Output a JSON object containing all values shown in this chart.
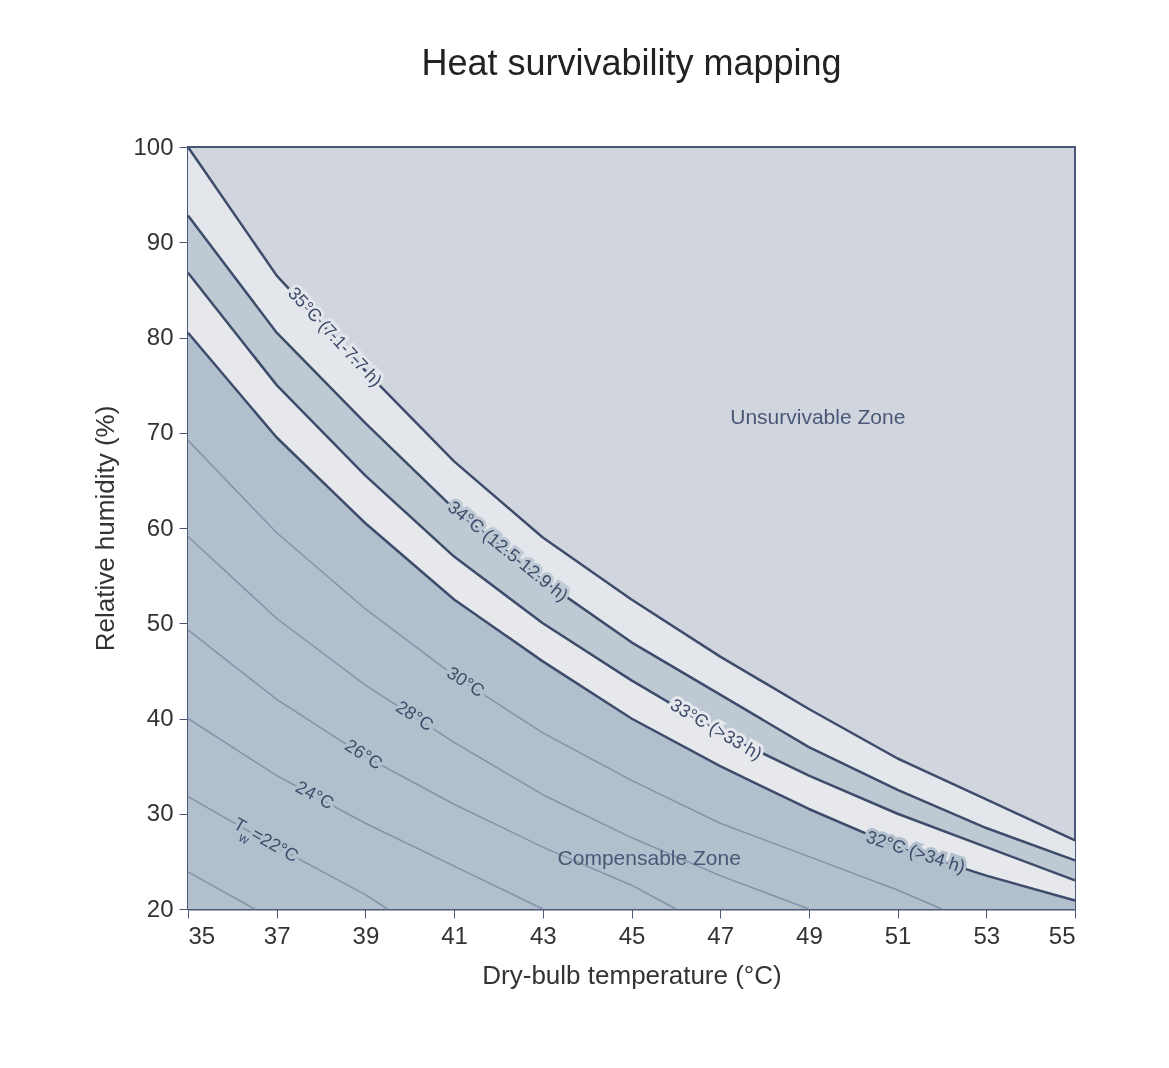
{
  "chart_data": {
    "type": "line",
    "title": "Heat survivability mapping",
    "xlabel": "Dry-bulb temperature (°C)",
    "ylabel": "Relative humidity (%)",
    "xlim": [
      35,
      55
    ],
    "xticks": [
      35,
      37,
      39,
      41,
      43,
      45,
      47,
      49,
      51,
      53,
      55
    ],
    "ylim": [
      20,
      100
    ],
    "yticks": [
      20,
      30,
      40,
      50,
      60,
      70,
      80,
      90,
      100
    ],
    "series": [
      {
        "name": "35°C (7.1-7.7 h)",
        "type": "area",
        "color": "#e3e6eb",
        "x": [
          35,
          37,
          39,
          41,
          43,
          45,
          47,
          49,
          51,
          53,
          55
        ],
        "values": [
          100,
          86.5,
          76.5,
          67,
          59,
          52.5,
          46.5,
          41,
          35.8,
          31.5,
          27.2
        ]
      },
      {
        "name": "34°C (12.5-12.9 h)",
        "type": "area",
        "color": "#bfc9d4",
        "x": [
          35,
          37,
          39,
          41,
          43,
          45,
          47,
          49,
          51,
          53,
          55
        ],
        "values": [
          92.8,
          80.5,
          71,
          62,
          54.5,
          48,
          42.5,
          37,
          32.5,
          28.5,
          25.1
        ]
      },
      {
        "name": "33°C (>33 h)",
        "type": "area",
        "color": "#e6e8ec",
        "x": [
          35,
          37,
          39,
          41,
          43,
          45,
          47,
          49,
          51,
          53,
          55
        ],
        "values": [
          86.8,
          75,
          65.5,
          57,
          50,
          44,
          38.5,
          34,
          30,
          26.5,
          23
        ]
      },
      {
        "name": "32°C (>34 h)",
        "type": "area",
        "color": "#b2bfcc",
        "x": [
          35,
          37,
          39,
          41,
          43,
          45,
          47,
          49,
          51,
          53,
          55
        ],
        "values": [
          80.5,
          69.5,
          60.5,
          52.5,
          46,
          40,
          35,
          30.5,
          26.5,
          23.5,
          20.9
        ]
      },
      {
        "name": "30°C",
        "color": "#8593aa",
        "x": [
          35,
          37,
          39,
          41,
          43,
          45,
          47,
          49,
          51,
          52
        ],
        "values": [
          69.2,
          59.5,
          51.5,
          44.5,
          38.5,
          33.5,
          29,
          25.5,
          22,
          20
        ]
      },
      {
        "name": "28°C",
        "color": "#8593aa",
        "x": [
          35,
          37,
          39,
          41,
          43,
          45,
          47,
          49
        ],
        "values": [
          59.1,
          50.5,
          43.5,
          37.5,
          32,
          27.5,
          23.5,
          20
        ]
      },
      {
        "name": "26°C",
        "color": "#8593aa",
        "x": [
          35,
          37,
          39,
          41,
          43,
          45,
          46
        ],
        "values": [
          49.3,
          42,
          36,
          31,
          26.5,
          22.5,
          20
        ]
      },
      {
        "name": "24°C",
        "color": "#8593aa",
        "x": [
          35,
          37,
          39,
          41,
          43
        ],
        "values": [
          40,
          34,
          29,
          24.5,
          20
        ]
      },
      {
        "name": "T$_{w}$=22°C",
        "color": "#8593aa",
        "x": [
          35,
          37,
          39,
          39.5
        ],
        "values": [
          31.8,
          26.5,
          21.5,
          20
        ]
      },
      {
        "color": "#8593aa",
        "x": [
          35,
          36.5
        ],
        "values": [
          23.9,
          20
        ]
      }
    ],
    "annotations": [
      "Unsurvivable Zone",
      "Compensable  Zone"
    ]
  }
}
